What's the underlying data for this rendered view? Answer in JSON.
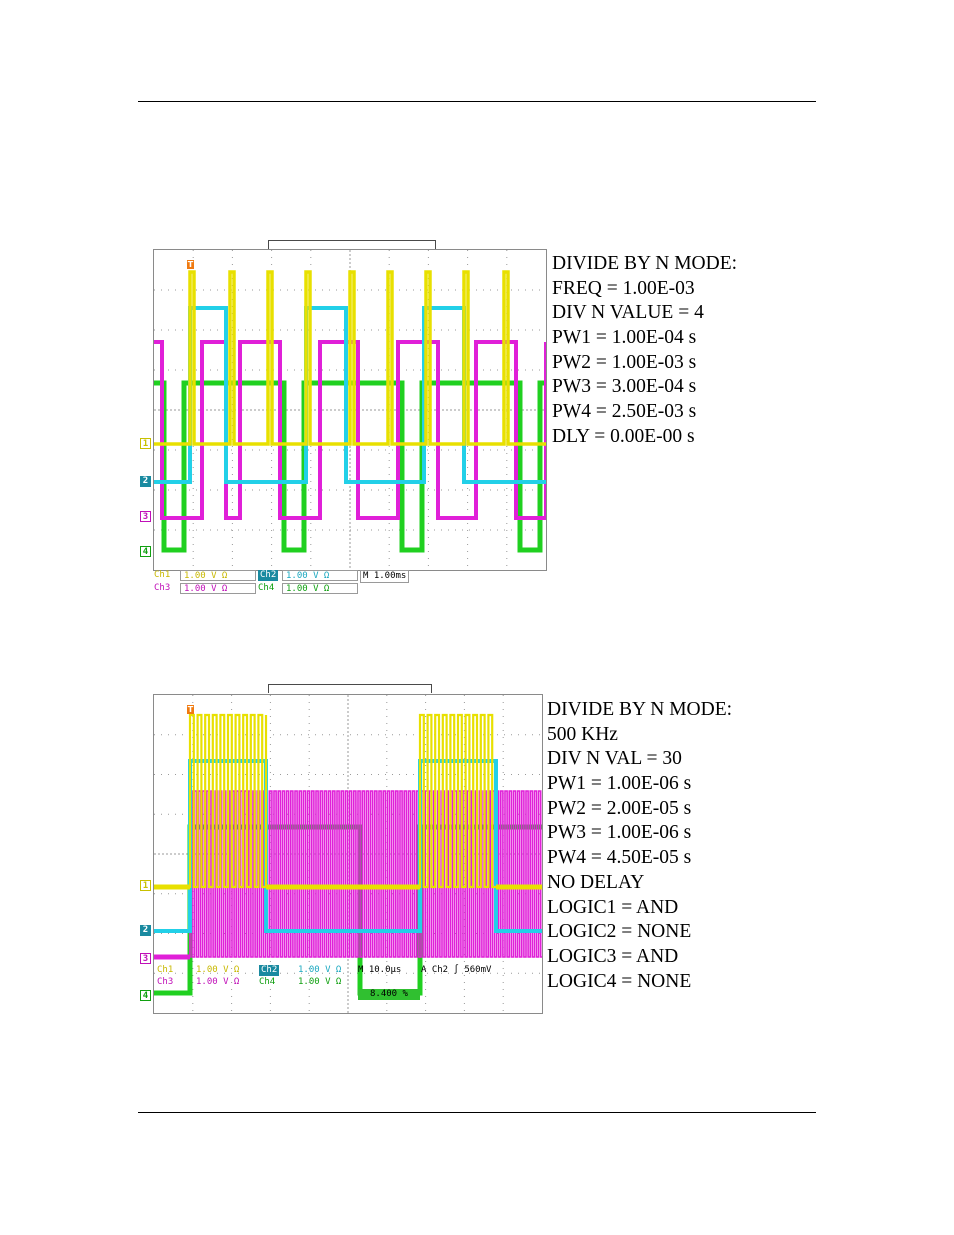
{
  "figure1": {
    "specs": [
      "DIVIDE BY N MODE:",
      "FREQ = 1.00E-03",
      "DIV N VALUE = 4",
      "PW1 = 1.00E-04 s",
      "PW2 = 1.00E-03 s",
      "PW3 = 3.00E-04 s",
      "PW4 = 2.50E-03 s",
      "DLY = 0.00E-00 s"
    ],
    "channels": [
      "1",
      "2",
      "3",
      "4"
    ],
    "readout": {
      "ch1": "Ch1",
      "ch1_val": "1.00 V Ω",
      "ch2": "Ch2",
      "ch2_val": "1.00 V Ω",
      "ch3": "Ch3",
      "ch3_val": "1.00 V Ω",
      "ch4": "Ch4",
      "ch4_val": "1.00 V Ω",
      "timebase": "M 1.00ms"
    }
  },
  "figure2": {
    "specs": [
      "DIVIDE BY N MODE:",
      "500 KHz",
      "DIV N VAL = 30",
      "PW1 = 1.00E-06 s",
      "PW2 = 2.00E-05 s",
      "PW3 = 1.00E-06 s",
      "PW4 = 4.50E-05 s",
      "NO DELAY",
      "LOGIC1 = AND",
      "LOGIC2  = NONE",
      "LOGIC3  = AND",
      "LOGIC4  = NONE"
    ],
    "channels": [
      "1",
      "2",
      "3",
      "4"
    ],
    "readout": {
      "ch1": "Ch1",
      "ch1_val": "1.00 V Ω",
      "ch2": "Ch2",
      "ch2_val": "1.00 V Ω",
      "ch3": "Ch3",
      "ch3_val": "1.00 V Ω",
      "ch4": "Ch4",
      "ch4_val": "1.00 V Ω",
      "timebase": "M 10.0µs",
      "trigger": "A  Ch2  ∫   560mV",
      "position": "8.400 %"
    }
  },
  "colors": {
    "ch1": "#e8e000",
    "ch2": "#22d0e8",
    "ch3": "#e020d8",
    "ch4": "#20d020",
    "grid": "#9a9a9a",
    "trigger": "#f07a10"
  },
  "trigger_marker": "T"
}
